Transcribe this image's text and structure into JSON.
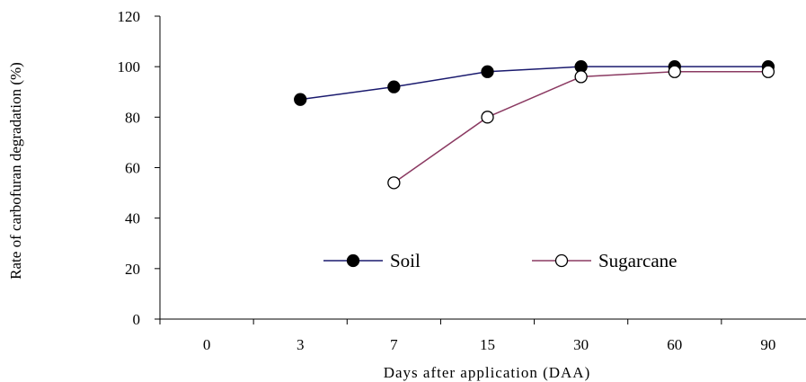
{
  "chart_data": {
    "type": "line",
    "title": "",
    "xlabel": "Days after application (DAA)",
    "ylabel": "Rate of carbofuran degradation (%)",
    "categories": [
      "0",
      "3",
      "7",
      "15",
      "30",
      "60",
      "90"
    ],
    "ylim": [
      0,
      120
    ],
    "yticks": [
      "0",
      "20",
      "40",
      "60",
      "80",
      "100",
      "120"
    ],
    "grid": false,
    "legend_position": "center",
    "series": [
      {
        "name": "Soil",
        "color": "#1a1a6e",
        "marker": "filled-circle",
        "values": [
          null,
          87,
          92,
          98,
          100,
          100,
          100
        ]
      },
      {
        "name": "Sugarcane",
        "color": "#8b3a62",
        "marker": "open-circle",
        "values": [
          null,
          null,
          54,
          80,
          96,
          98,
          98
        ]
      }
    ]
  }
}
